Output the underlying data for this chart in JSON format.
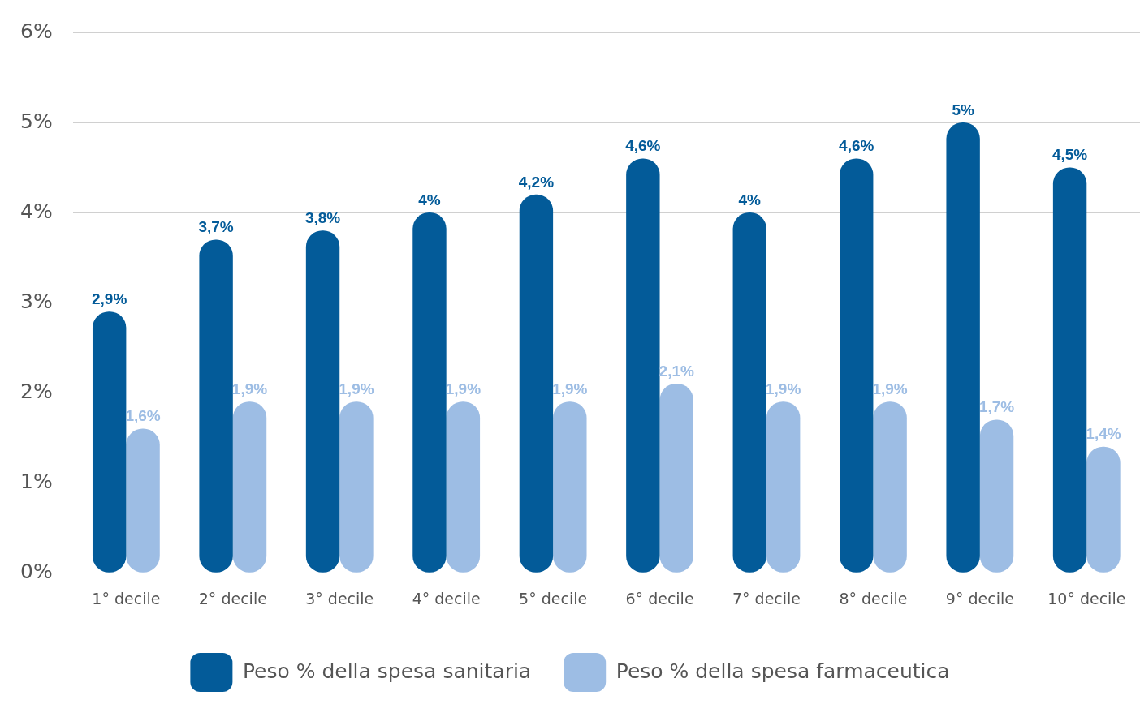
{
  "chart_data": {
    "type": "bar",
    "categories": [
      "1° decile",
      "2° decile",
      "3° decile",
      "4° decile",
      "5° decile",
      "6° decile",
      "7° decile",
      "8° decile",
      "9° decile",
      "10° decile"
    ],
    "series": [
      {
        "name": "Peso % della spesa sanitaria",
        "color": "#035b99",
        "values": [
          2.9,
          3.7,
          3.8,
          4,
          4.2,
          4.6,
          4,
          4.6,
          5,
          4.5
        ],
        "value_labels": [
          "2,9%",
          "3,7%",
          "3,8%",
          "4%",
          "4,2%",
          "4,6%",
          "4%",
          "4,6%",
          "5%",
          "4,5%"
        ]
      },
      {
        "name": "Peso % della spesa farmaceutica",
        "color": "#9dbde4",
        "values": [
          1.6,
          1.9,
          1.9,
          1.9,
          1.9,
          2.1,
          1.9,
          1.9,
          1.7,
          1.4
        ],
        "value_labels": [
          "1,6%",
          "1,9%",
          "1,9%",
          "1,9%",
          "1,9%",
          "2,1%",
          "1,9%",
          "1,9%",
          "1,7%",
          "1,4%"
        ]
      }
    ],
    "ylim": [
      0,
      6
    ],
    "yticks": [
      {
        "value": 0,
        "label": "0%"
      },
      {
        "value": 1,
        "label": "1%"
      },
      {
        "value": 2,
        "label": "2%"
      },
      {
        "value": 3,
        "label": "3%"
      },
      {
        "value": 4,
        "label": "4%"
      },
      {
        "value": 5,
        "label": "5%"
      },
      {
        "value": 6,
        "label": "6%"
      }
    ],
    "grid": "y",
    "legend": "bottom"
  }
}
